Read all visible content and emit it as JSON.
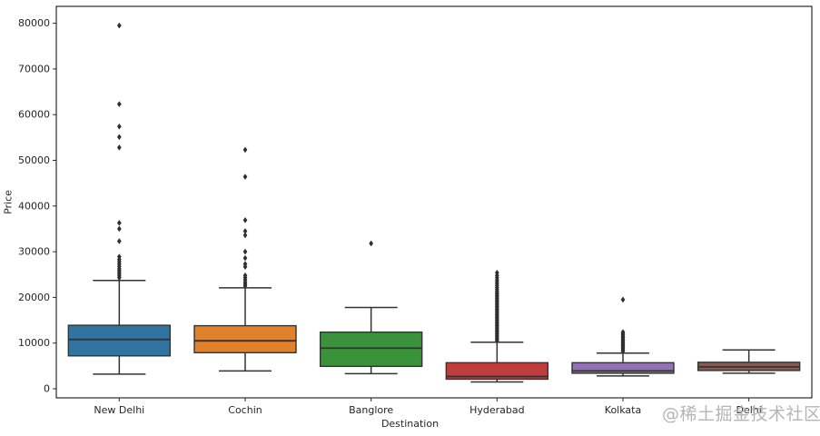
{
  "figure": {
    "ylabel": "Price",
    "xlabel": "Destination",
    "watermark": "@稀土掘金技术社区"
  },
  "chart_data": {
    "type": "boxplot",
    "title": "",
    "xlabel": "Destination",
    "ylabel": "Price",
    "ylim": [
      -2000,
      83700
    ],
    "yticks": [
      0,
      10000,
      20000,
      30000,
      40000,
      50000,
      60000,
      70000,
      80000
    ],
    "grid": false,
    "legend": "none",
    "categories": [
      "New Delhi",
      "Cochin",
      "Banglore",
      "Hyderabad",
      "Kolkata",
      "Delhi"
    ],
    "series": [
      {
        "name": "New Delhi",
        "color": "#3274a1",
        "whisker_low": 3200,
        "q1": 7200,
        "median": 10800,
        "q3": 13900,
        "whisker_high": 23700,
        "outliers": [
          24300,
          24700,
          25100,
          25500,
          25900,
          26300,
          26800,
          27300,
          27800,
          28300,
          28900,
          32300,
          35000,
          36300,
          52800,
          55100,
          57400,
          62300,
          79500
        ]
      },
      {
        "name": "Cochin",
        "color": "#e1812c",
        "whisker_low": 3900,
        "q1": 7900,
        "median": 10500,
        "q3": 13800,
        "whisker_high": 22100,
        "outliers": [
          22500,
          22900,
          23300,
          23800,
          24300,
          24800,
          26700,
          27300,
          28600,
          30000,
          33600,
          34500,
          36900,
          46400,
          52300
        ]
      },
      {
        "name": "Banglore",
        "color": "#3a923a",
        "whisker_low": 3300,
        "q1": 4900,
        "median": 8900,
        "q3": 12400,
        "whisker_high": 17800,
        "outliers": [
          31800
        ]
      },
      {
        "name": "Hyderabad",
        "color": "#c03d3e",
        "whisker_low": 1500,
        "q1": 2100,
        "median": 2700,
        "q3": 5700,
        "whisker_high": 10200,
        "outliers": [
          10500,
          10800,
          11100,
          11400,
          11700,
          12000,
          12300,
          12600,
          12900,
          13200,
          13500,
          13800,
          14100,
          14400,
          14700,
          15000,
          15300,
          15600,
          15900,
          16200,
          16500,
          16800,
          17100,
          17400,
          17700,
          18000,
          18300,
          18600,
          18900,
          19200,
          19500,
          19800,
          20100,
          20400,
          20700,
          21000,
          21400,
          21800,
          22200,
          22600,
          23000,
          23400,
          23800,
          24300,
          24800,
          25400
        ]
      },
      {
        "name": "Kolkata",
        "color": "#9372b2",
        "whisker_low": 2800,
        "q1": 3400,
        "median": 3900,
        "q3": 5700,
        "whisker_high": 7800,
        "outliers": [
          8200,
          8500,
          8800,
          9100,
          9400,
          9700,
          10000,
          10300,
          10600,
          10900,
          11200,
          11500,
          11800,
          12100,
          12400,
          19500
        ]
      },
      {
        "name": "Delhi",
        "color": "#845b53",
        "whisker_low": 3400,
        "q1": 4000,
        "median": 4800,
        "q3": 5800,
        "whisker_high": 8500,
        "outliers": []
      }
    ]
  }
}
